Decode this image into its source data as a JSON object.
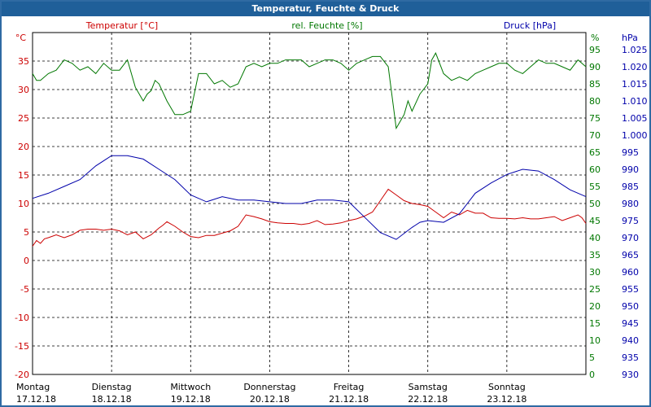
{
  "window": {
    "title": "Temperatur, Feuchte & Druck"
  },
  "colors": {
    "frame": "#2f6aa3",
    "titlebar": "#1f5f99",
    "temperature": "#cc0000",
    "humidity": "#007700",
    "pressure": "#0000aa",
    "grid": "#000000",
    "background": "#ffffff"
  },
  "chart_data": {
    "type": "line",
    "title": "",
    "x_ticks": [
      {
        "day": "Montag",
        "date": "17.12.18"
      },
      {
        "day": "Dienstag",
        "date": "18.12.18"
      },
      {
        "day": "Mittwoch",
        "date": "19.12.18"
      },
      {
        "day": "Donnerstag",
        "date": "20.12.18"
      },
      {
        "day": "Freitag",
        "date": "21.12.18"
      },
      {
        "day": "Samstag",
        "date": "22.12.18"
      },
      {
        "day": "Sonntag",
        "date": "23.12.18"
      }
    ],
    "x_range": [
      0,
      7
    ],
    "axes": {
      "temperature": {
        "unit": "°C",
        "label": "Temperatur [°C]",
        "range": [
          -20,
          40
        ],
        "ticks": [
          -20,
          -15,
          -10,
          -5,
          0,
          5,
          10,
          15,
          20,
          25,
          30,
          35
        ]
      },
      "humidity": {
        "unit": "%",
        "label": "rel. Feuchte [%]",
        "range": [
          0,
          100
        ],
        "ticks": [
          0,
          5,
          10,
          15,
          20,
          25,
          30,
          35,
          40,
          45,
          50,
          55,
          60,
          65,
          70,
          75,
          80,
          85,
          90,
          95
        ]
      },
      "pressure": {
        "unit": "hPa",
        "label": "Druck [hPa]",
        "range": [
          930,
          1030
        ],
        "ticks": [
          "930",
          "935",
          "940",
          "945",
          "950",
          "955",
          "960",
          "965",
          "970",
          "975",
          "980",
          "985",
          "990",
          "995",
          "1.000",
          "1.005",
          "1.010",
          "1.015",
          "1.020",
          "1.025"
        ]
      }
    },
    "grid": true,
    "series": [
      {
        "name": "Temperatur [°C]",
        "axis": "temperature",
        "x": [
          0,
          0.05,
          0.1,
          0.15,
          0.2,
          0.3,
          0.4,
          0.5,
          0.6,
          0.7,
          0.8,
          0.9,
          1.0,
          1.1,
          1.2,
          1.3,
          1.4,
          1.5,
          1.6,
          1.65,
          1.7,
          1.8,
          1.9,
          2.0,
          2.1,
          2.2,
          2.3,
          2.4,
          2.5,
          2.6,
          2.7,
          2.8,
          2.9,
          3.0,
          3.1,
          3.2,
          3.3,
          3.4,
          3.5,
          3.6,
          3.7,
          3.8,
          3.9,
          4.0,
          4.1,
          4.2,
          4.3,
          4.4,
          4.5,
          4.6,
          4.7,
          4.8,
          4.9,
          5.0,
          5.1,
          5.2,
          5.3,
          5.4,
          5.5,
          5.6,
          5.7,
          5.8,
          5.9,
          6.0,
          6.1,
          6.2,
          6.3,
          6.4,
          6.5,
          6.6,
          6.7,
          6.8,
          6.9,
          6.95,
          7.0
        ],
        "values": [
          2.5,
          3.5,
          3.0,
          3.8,
          4.0,
          4.5,
          4.0,
          4.5,
          5.3,
          5.5,
          5.5,
          5.3,
          5.5,
          5.2,
          4.5,
          5.0,
          3.8,
          4.5,
          5.7,
          6.2,
          6.8,
          6.0,
          5.0,
          4.2,
          4.0,
          4.4,
          4.4,
          4.8,
          5.2,
          6.0,
          8.0,
          7.7,
          7.3,
          6.8,
          6.6,
          6.5,
          6.5,
          6.3,
          6.5,
          7.0,
          6.3,
          6.4,
          6.6,
          7.0,
          7.3,
          7.8,
          8.5,
          10.5,
          12.5,
          11.5,
          10.5,
          10.0,
          9.8,
          9.5,
          8.5,
          7.5,
          8.5,
          8.0,
          8.8,
          8.3,
          8.3,
          7.5,
          7.4,
          7.4,
          7.3,
          7.5,
          7.3,
          7.3,
          7.5,
          7.7,
          7.0,
          7.5,
          8.0,
          7.5,
          6.5
        ]
      },
      {
        "name": "rel. Feuchte [%]",
        "axis": "humidity",
        "x": [
          0,
          0.05,
          0.1,
          0.2,
          0.3,
          0.4,
          0.5,
          0.6,
          0.7,
          0.8,
          0.9,
          1.0,
          1.1,
          1.2,
          1.3,
          1.4,
          1.45,
          1.5,
          1.55,
          1.6,
          1.7,
          1.8,
          1.9,
          2.0,
          2.1,
          2.2,
          2.3,
          2.4,
          2.5,
          2.6,
          2.7,
          2.8,
          2.9,
          3.0,
          3.1,
          3.2,
          3.3,
          3.4,
          3.5,
          3.6,
          3.7,
          3.8,
          3.9,
          4.0,
          4.1,
          4.2,
          4.3,
          4.4,
          4.5,
          4.6,
          4.7,
          4.75,
          4.8,
          4.9,
          5.0,
          5.05,
          5.1,
          5.2,
          5.3,
          5.4,
          5.5,
          5.6,
          5.7,
          5.8,
          5.9,
          6.0,
          6.1,
          6.2,
          6.3,
          6.4,
          6.5,
          6.6,
          6.7,
          6.8,
          6.9,
          6.95,
          7.0
        ],
        "values": [
          88,
          86,
          86,
          88,
          89,
          92,
          91,
          89,
          90,
          88,
          91,
          89,
          89,
          92,
          84,
          80,
          82,
          83,
          86,
          85,
          80,
          76,
          76,
          77,
          88,
          88,
          85,
          86,
          84,
          85,
          90,
          91,
          90,
          91,
          91,
          92,
          92,
          92,
          90,
          91,
          92,
          92,
          91,
          89,
          91,
          92,
          93,
          93,
          90,
          72,
          76,
          80,
          77,
          82,
          85,
          92,
          94,
          88,
          86,
          87,
          86,
          88,
          89,
          90,
          91,
          91,
          89,
          88,
          90,
          92,
          91,
          91,
          90,
          89,
          92,
          91,
          90
        ]
      },
      {
        "name": "Druck [hPa]",
        "axis": "pressure",
        "x": [
          0,
          0.2,
          0.4,
          0.6,
          0.8,
          1.0,
          1.2,
          1.4,
          1.6,
          1.8,
          2.0,
          2.2,
          2.4,
          2.6,
          2.8,
          3.0,
          3.2,
          3.4,
          3.6,
          3.8,
          4.0,
          4.2,
          4.4,
          4.6,
          4.8,
          4.9,
          5.0,
          5.2,
          5.4,
          5.5,
          5.6,
          5.8,
          6.0,
          6.2,
          6.4,
          6.6,
          6.8,
          7.0
        ],
        "values": [
          981.5,
          983,
          985,
          987,
          991,
          994,
          994,
          993,
          990,
          987,
          982.5,
          980.5,
          982,
          981,
          981,
          980.5,
          980,
          980,
          981,
          981,
          980.5,
          976,
          971.5,
          969.5,
          973,
          974.5,
          975,
          974.5,
          977,
          980,
          983,
          986,
          988.5,
          990,
          989.5,
          987,
          984,
          982
        ]
      }
    ]
  }
}
